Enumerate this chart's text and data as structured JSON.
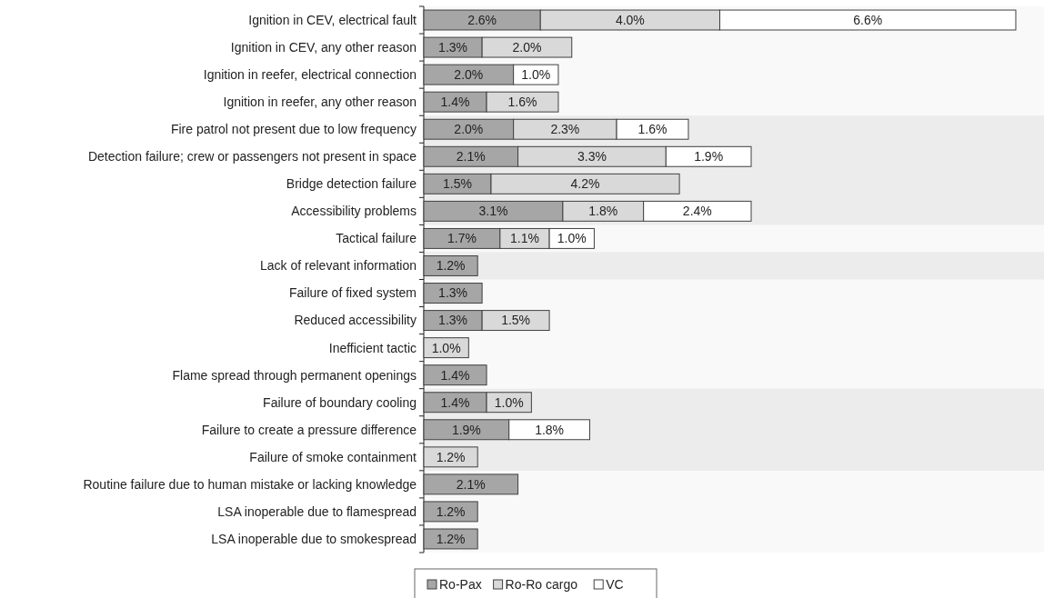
{
  "chart_data": {
    "type": "bar",
    "orientation": "horizontal",
    "stacked": true,
    "legend": "bottom",
    "categories": [
      "Ignition in CEV, electrical fault",
      "Ignition in CEV, any other reason",
      "Ignition in reefer, electrical connection",
      "Ignition in reefer, any other reason",
      "Fire patrol not present due to low frequency",
      "Detection failure; crew or passengers not present in space",
      "Bridge detection failure",
      "Accessibility problems",
      "Tactical failure",
      "Lack of relevant information",
      "Failure of fixed system",
      "Reduced accessibility",
      "Inefficient tactic",
      "Flame spread through permanent openings",
      "Failure of boundary cooling",
      "Failure to create a pressure difference",
      "Failure of smoke containment",
      "Routine failure due to human mistake or lacking knowledge",
      "LSA inoperable due to flamespread",
      "LSA inoperable due to smokespread"
    ],
    "series": [
      {
        "name": "Ro-Pax",
        "color": "#a6a6a6",
        "values": [
          2.6,
          1.3,
          2.0,
          1.4,
          2.0,
          2.1,
          1.5,
          3.1,
          1.7,
          1.2,
          1.3,
          1.3,
          null,
          1.4,
          1.4,
          1.9,
          null,
          2.1,
          1.2,
          1.2
        ],
        "value_labels": [
          "2.6%",
          "1.3%",
          "2.0%",
          "1.4%",
          "2.0%",
          "2.1%",
          "1.5%",
          "3.1%",
          "1.7%",
          "1.2%",
          "1.3%",
          "1.3%",
          null,
          "1.4%",
          "1.4%",
          "1.9%",
          null,
          "2.1%",
          "1.2%",
          "1.2%"
        ]
      },
      {
        "name": "Ro-Ro cargo",
        "color": "#d9d9d9",
        "values": [
          4.0,
          2.0,
          null,
          1.6,
          2.3,
          3.3,
          4.2,
          1.8,
          1.1,
          null,
          null,
          1.5,
          1.0,
          null,
          1.0,
          null,
          1.2,
          null,
          null,
          null
        ],
        "value_labels": [
          "4.0%",
          "2.0%",
          null,
          "1.6%",
          "2.3%",
          "3.3%",
          "4.2%",
          "1.8%",
          "1.1%",
          null,
          null,
          "1.5%",
          "1.0%",
          null,
          "1.0%",
          null,
          "1.2%",
          null,
          null,
          null
        ]
      },
      {
        "name": "VC",
        "color": "#ffffff",
        "values": [
          6.6,
          null,
          1.0,
          null,
          1.6,
          1.9,
          null,
          2.4,
          1.0,
          null,
          null,
          null,
          null,
          null,
          null,
          1.8,
          null,
          null,
          null,
          null
        ],
        "value_labels": [
          "6.6%",
          null,
          "1.0%",
          null,
          "1.6%",
          "1.9%",
          null,
          "2.4%",
          "1.0%",
          null,
          null,
          null,
          null,
          null,
          null,
          "1.8%",
          null,
          null,
          null,
          null
        ]
      }
    ],
    "bands": [
      {
        "axis": "y",
        "from": "Fire patrol not present due to low frequency",
        "to": "Accessibility problems",
        "color": "#ececec"
      },
      {
        "axis": "y",
        "from": "Lack of relevant information",
        "to": "Lack of relevant information",
        "color": "#ececec"
      },
      {
        "axis": "y",
        "from": "Failure of boundary cooling",
        "to": "Failure of smoke containment",
        "color": "#ececec"
      }
    ]
  }
}
